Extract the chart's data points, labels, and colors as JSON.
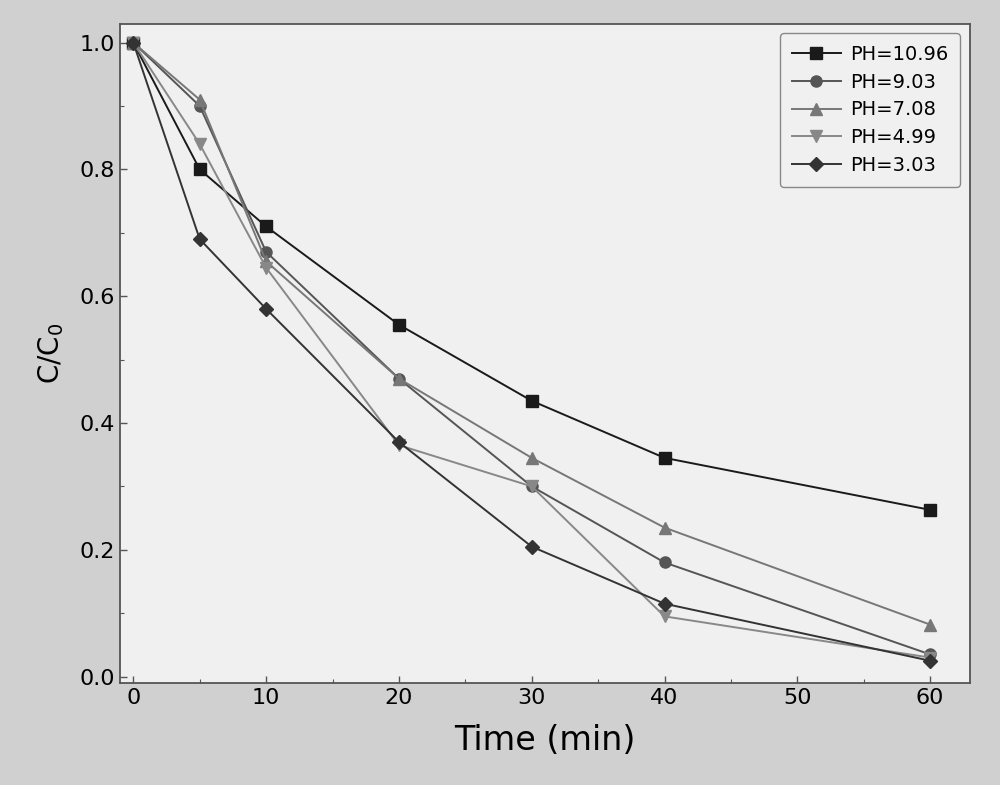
{
  "series": [
    {
      "label": "PH=10.96",
      "x": [
        0,
        5,
        10,
        20,
        30,
        40,
        60
      ],
      "y": [
        1.0,
        0.8,
        0.71,
        0.555,
        0.435,
        0.345,
        0.263
      ],
      "color": "#1a1a1a",
      "marker": "s",
      "marker_size": 8,
      "linewidth": 1.4
    },
    {
      "label": "PH=9.03",
      "x": [
        0,
        5,
        10,
        20,
        30,
        40,
        60
      ],
      "y": [
        1.0,
        0.9,
        0.67,
        0.47,
        0.3,
        0.18,
        0.035
      ],
      "color": "#555555",
      "marker": "o",
      "marker_size": 8,
      "linewidth": 1.4
    },
    {
      "label": "PH=7.08",
      "x": [
        0,
        5,
        10,
        20,
        30,
        40,
        60
      ],
      "y": [
        1.0,
        0.91,
        0.655,
        0.47,
        0.345,
        0.235,
        0.082
      ],
      "color": "#777777",
      "marker": "^",
      "marker_size": 8,
      "linewidth": 1.4
    },
    {
      "label": "PH=4.99",
      "x": [
        0,
        5,
        10,
        20,
        30,
        40,
        60
      ],
      "y": [
        1.0,
        0.84,
        0.645,
        0.365,
        0.3,
        0.095,
        0.03
      ],
      "color": "#888888",
      "marker": "v",
      "marker_size": 8,
      "linewidth": 1.4
    },
    {
      "label": "PH=3.03",
      "x": [
        0,
        5,
        10,
        20,
        30,
        40,
        60
      ],
      "y": [
        1.0,
        0.69,
        0.58,
        0.37,
        0.205,
        0.115,
        0.025
      ],
      "color": "#333333",
      "marker": "D",
      "marker_size": 7,
      "linewidth": 1.4
    }
  ],
  "xlabel": "Time (min)",
  "ylabel": "C/C$_0$",
  "xlim": [
    -1,
    63
  ],
  "ylim": [
    -0.01,
    1.03
  ],
  "xticks": [
    0,
    10,
    20,
    30,
    40,
    50,
    60
  ],
  "yticks": [
    0.0,
    0.2,
    0.4,
    0.6,
    0.8,
    1.0
  ],
  "legend_loc": "upper right",
  "background_color": "#f0f0f0",
  "figure_width": 10.0,
  "figure_height": 7.85
}
